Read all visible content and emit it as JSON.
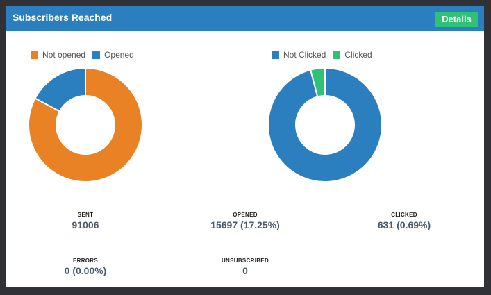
{
  "panel": {
    "title": "Subscribers Reached",
    "details_label": "Details"
  },
  "chart_data": [
    {
      "type": "pie",
      "series": [
        {
          "name": "Not opened",
          "value": 82.75,
          "color": "#e88225"
        },
        {
          "name": "Opened",
          "value": 17.25,
          "color": "#2b7fbf"
        }
      ]
    },
    {
      "type": "pie",
      "series": [
        {
          "name": "Not Clicked",
          "value": 95.9,
          "color": "#2b7fbf"
        },
        {
          "name": "Clicked",
          "value": 4.1,
          "color": "#2ec275"
        }
      ]
    }
  ],
  "stats": {
    "sent": {
      "label": "SENT",
      "value": "91006"
    },
    "opened": {
      "label": "OPENED",
      "value": "15697 (17.25%)"
    },
    "clicked": {
      "label": "CLICKED",
      "value": "631 (0.69%)"
    },
    "errors": {
      "label": "ERRORS",
      "value": "0 (0.00%)"
    },
    "unsubscribed": {
      "label": "UNSUBSCRIBED",
      "value": "0"
    }
  }
}
